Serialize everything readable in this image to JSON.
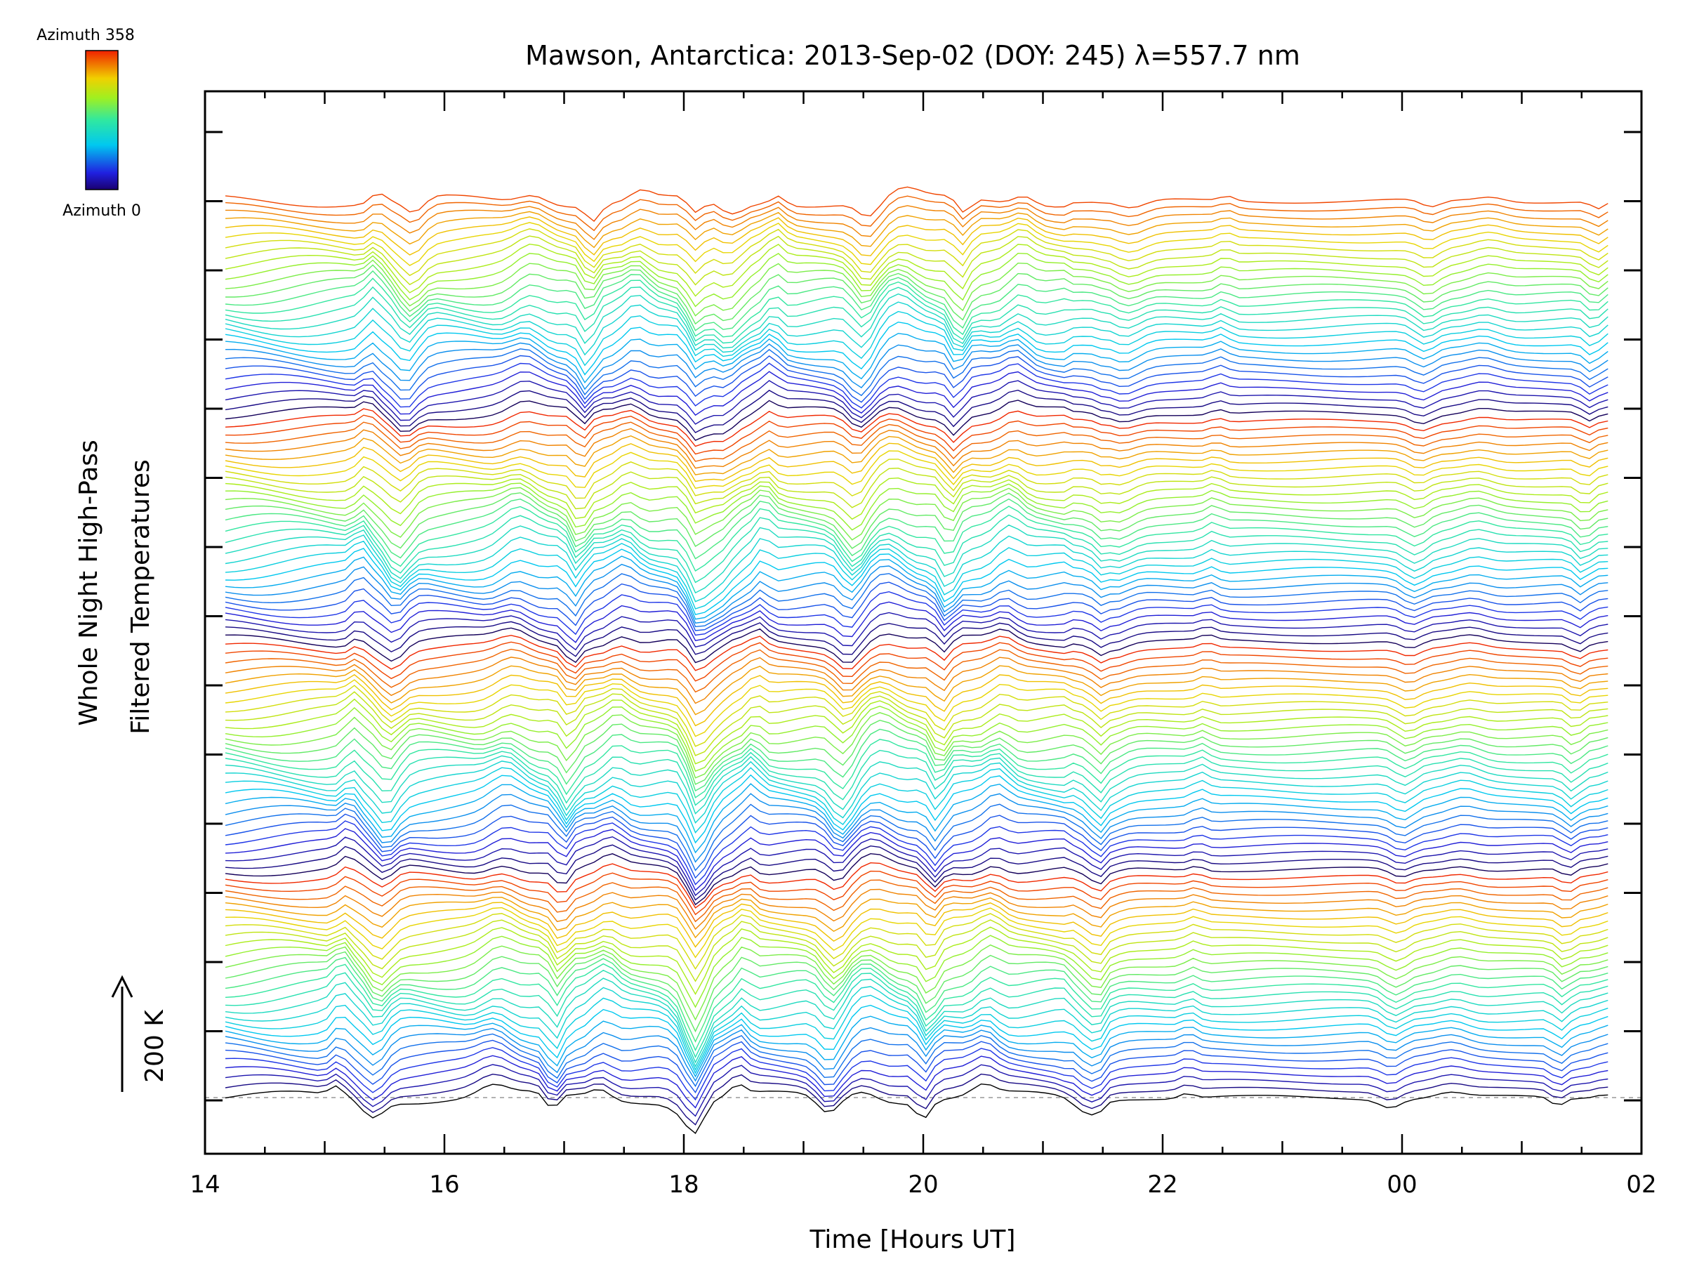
{
  "chart_data": {
    "type": "line",
    "title": "Mawson, Antarctica: 2013-Sep-02 (DOY: 245) λ=557.7 nm",
    "xlabel": "Time [Hours UT]",
    "ylabel_line1": "Whole Night High-Pass",
    "ylabel_line2": "Filtered Temperatures",
    "x_ticks": [
      "14",
      "16",
      "18",
      "20",
      "22",
      "00",
      "02"
    ],
    "x_range_hours": [
      14,
      26
    ],
    "data_x_range_hours": [
      14.17,
      25.72
    ],
    "scale_bar_label": "200 K",
    "colorbar": {
      "top_label": "Azimuth 358",
      "bottom_label": "Azimuth 0",
      "palette": "rainbow (blue to red)"
    },
    "series_count": 115,
    "baseline_dashed": true,
    "wave_features_hours": [
      15.1,
      15.4,
      16.4,
      16.9,
      17.3,
      18.05,
      18.45,
      19.2,
      19.5,
      20.0,
      20.5,
      21.4,
      22.2,
      23.9,
      24.4,
      25.3,
      25.7
    ]
  }
}
